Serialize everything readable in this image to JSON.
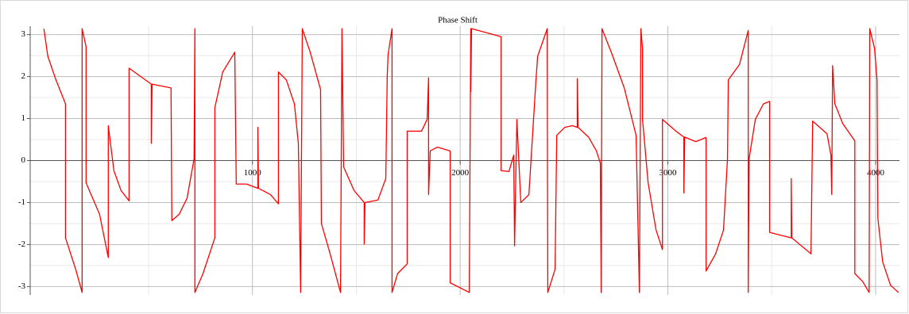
{
  "chart_data": {
    "type": "line",
    "title": "Phase Shift",
    "color": "#ff0000",
    "xlim": [
      -70,
      4115
    ],
    "ylim": [
      -3.2,
      3.2
    ],
    "xticks": [
      1000,
      2000,
      3000,
      4000
    ],
    "yticks": [
      -3,
      -2,
      -1,
      0,
      1,
      2,
      3
    ],
    "xminorticks": [
      500,
      1500,
      2500,
      3500
    ],
    "yminorticks": [
      -2.5,
      -1.5,
      -0.5,
      0.5,
      1.5,
      2.5
    ],
    "grid": true,
    "x": [
      -4,
      15,
      54,
      100,
      100,
      149,
      180,
      180,
      199,
      199,
      264,
      306,
      306,
      333,
      367,
      406,
      406,
      513,
      513,
      517,
      608,
      612,
      647,
      685,
      719,
      723,
      723,
      762,
      819,
      819,
      857,
      915,
      922,
      972,
      1026,
      1026,
      1029,
      1087,
      1125,
      1125,
      1163,
      1202,
      1221,
      1232,
      1240,
      1278,
      1328,
      1332,
      1374,
      1424,
      1431,
      1439,
      1489,
      1538,
      1538,
      1542,
      1604,
      1642,
      1649,
      1653,
      1672,
      1672,
      1699,
      1745,
      1745,
      1814,
      1841,
      1848,
      1848,
      1856,
      1890,
      1952,
      1952,
      2044,
      2051,
      2051,
      2055,
      2197,
      2197,
      2235,
      2258,
      2262,
      2273,
      2292,
      2331,
      2365,
      2373,
      2419,
      2422,
      2457,
      2465,
      2503,
      2541,
      2564,
      2564,
      2568,
      2618,
      2656,
      2675,
      2679,
      2683,
      2732,
      2790,
      2847,
      2863,
      2870,
      2878,
      2878,
      2905,
      2943,
      2974,
      2974,
      3039,
      3077,
      3077,
      3081,
      3134,
      3184,
      3184,
      3230,
      3268,
      3287,
      3291,
      3345,
      3387,
      3387,
      3391,
      3421,
      3460,
      3490,
      3490,
      3594,
      3594,
      3597,
      3689,
      3697,
      3766,
      3785,
      3789,
      3793,
      3804,
      3842,
      3900,
      3900,
      3938,
      3969,
      3972,
      3995,
      4007,
      4011,
      4034,
      4072,
      4110
    ],
    "values": [
      3.14,
      2.48,
      1.92,
      1.35,
      -1.84,
      -2.59,
      -3.14,
      3.14,
      2.71,
      -0.53,
      -1.28,
      -2.31,
      0.83,
      -0.24,
      -0.71,
      -0.96,
      2.2,
      1.82,
      0.41,
      1.82,
      1.73,
      -1.43,
      -1.28,
      -0.9,
      0.04,
      3.14,
      -3.14,
      -2.69,
      -1.84,
      1.26,
      2.11,
      2.58,
      -0.56,
      -0.56,
      -0.66,
      0.79,
      -0.66,
      -0.81,
      -1.03,
      2.11,
      1.92,
      1.35,
      0.41,
      -3.14,
      3.14,
      2.58,
      1.69,
      -1.5,
      -2.22,
      -3.14,
      3.14,
      -0.15,
      -0.71,
      -1.0,
      -1.99,
      -1.0,
      -0.94,
      -0.43,
      2.01,
      2.52,
      3.14,
      -3.14,
      -2.69,
      -2.46,
      0.7,
      0.7,
      0.98,
      1.97,
      -0.81,
      0.23,
      0.32,
      0.23,
      -2.91,
      -3.14,
      3.14,
      1.64,
      3.14,
      2.95,
      -0.24,
      -0.26,
      0.13,
      -2.03,
      0.98,
      -1.0,
      -0.81,
      1.92,
      2.48,
      3.14,
      -3.14,
      -2.59,
      0.6,
      0.79,
      0.83,
      0.79,
      1.95,
      0.79,
      0.56,
      0.23,
      -0.06,
      -3.14,
      3.14,
      2.52,
      1.73,
      0.6,
      -3.14,
      3.14,
      2.67,
      0.98,
      -0.53,
      -1.65,
      -2.12,
      0.98,
      0.7,
      0.56,
      -0.77,
      0.56,
      0.45,
      0.55,
      -2.63,
      -2.22,
      -1.65,
      0.04,
      1.92,
      2.29,
      3.1,
      -3.14,
      0.04,
      0.98,
      1.35,
      1.41,
      -1.71,
      -1.84,
      -0.43,
      -1.84,
      -2.22,
      0.94,
      0.64,
      0.13,
      -0.81,
      2.26,
      1.35,
      0.88,
      0.47,
      -2.69,
      -2.88,
      -3.14,
      3.14,
      2.67,
      1.92,
      -1.37,
      -2.41,
      -2.97,
      -3.14
    ]
  }
}
